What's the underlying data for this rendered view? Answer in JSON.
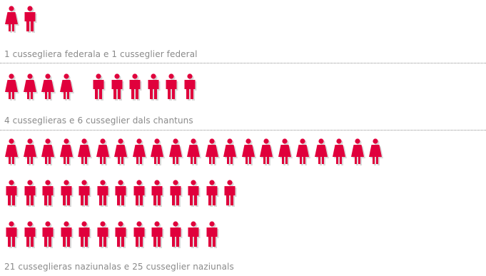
{
  "colors": {
    "icon": "#e0003c",
    "shadow": "#b9b9b9",
    "caption": "#8a8a8a"
  },
  "icons": {
    "woman": "woman-icon",
    "man": "man-icon"
  },
  "chart_data": {
    "type": "pictogram",
    "groups": [
      {
        "women": 1,
        "men": 1,
        "caption": "1 cussegliera federala e 1 cusseglier federal"
      },
      {
        "women": 4,
        "men": 6,
        "caption": "4 cusseglieras e 6 cusseglier dals chantuns"
      },
      {
        "women": 21,
        "men": 25,
        "caption": "21 cusseglieras naziunalas e 25 cusseglier naziunals"
      }
    ]
  }
}
